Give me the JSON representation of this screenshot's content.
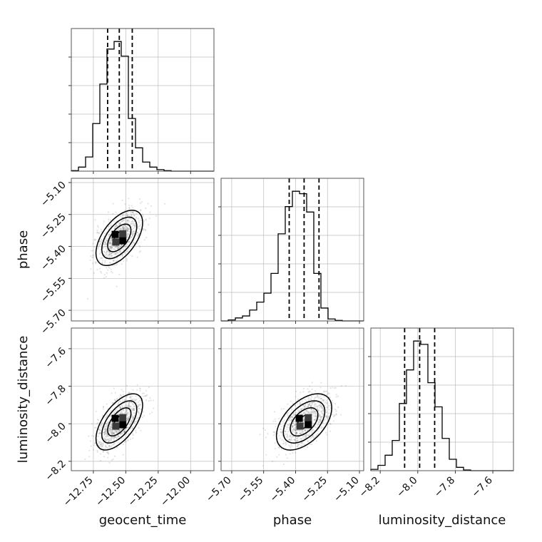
{
  "chart_data": {
    "type": "corner",
    "parameters": [
      "geocent_time",
      "phase",
      "luminosity_distance"
    ],
    "ranges": {
      "geocent_time": [
        -12.92,
        -11.82
      ],
      "phase": [
        -5.75,
        -5.08
      ],
      "luminosity_distance": [
        -8.25,
        -7.49
      ]
    },
    "ticks": {
      "geocent_time": [
        -12.75,
        -12.5,
        -12.25,
        -12.0
      ],
      "phase": [
        -5.7,
        -5.55,
        -5.4,
        -5.25,
        -5.1
      ],
      "luminosity_distance": [
        -8.2,
        -8.0,
        -7.8,
        -7.6
      ]
    },
    "tick_labels": {
      "geocent_time": [
        "−12.75",
        "−12.50",
        "−12.25",
        "−12.00"
      ],
      "phase": [
        "−5.70",
        "−5.55",
        "−5.40",
        "−5.25",
        "−5.10"
      ],
      "luminosity_distance": [
        "−8.2",
        "−8.0",
        "−7.8",
        "−7.6"
      ]
    },
    "axis_labels": {
      "geocent_time": "geocent_time",
      "phase": "phase",
      "luminosity_distance": "luminosity_distance"
    },
    "quantiles": {
      "geocent_time": [
        -12.64,
        -12.55,
        -12.45
      ],
      "phase": [
        -5.43,
        -5.36,
        -5.29
      ],
      "luminosity_distance": [
        -8.07,
        -7.99,
        -7.91
      ]
    },
    "histograms": {
      "geocent_time": {
        "edges": [
          -12.92,
          -12.865,
          -12.81,
          -12.755,
          -12.7,
          -12.645,
          -12.59,
          -12.535,
          -12.48,
          -12.425,
          -12.37,
          -12.315,
          -12.26,
          -12.205,
          -12.15,
          -12.095,
          -12.04,
          -11.985,
          -11.93,
          -11.875,
          -11.82
        ],
        "counts": [
          1,
          8,
          28,
          94,
          172,
          241,
          256,
          227,
          104,
          46,
          18,
          8,
          3,
          1,
          0,
          0,
          0,
          0,
          0,
          0
        ]
      },
      "phase": {
        "edges": [
          -5.75,
          -5.7165,
          -5.683,
          -5.6495,
          -5.616,
          -5.5825,
          -5.549,
          -5.5155,
          -5.482,
          -5.4485,
          -5.415,
          -5.3815,
          -5.348,
          -5.3145,
          -5.281,
          -5.2475,
          -5.214,
          -5.1805,
          -5.147,
          -5.1135,
          -5.08
        ],
        "counts": [
          0,
          2,
          6,
          10,
          22,
          38,
          56,
          96,
          176,
          231,
          262,
          257,
          220,
          96,
          26,
          4,
          1,
          0,
          0,
          0
        ]
      },
      "luminosity_distance": {
        "edges": [
          -8.25,
          -8.212,
          -8.174,
          -8.136,
          -8.098,
          -8.06,
          -8.022,
          -7.984,
          -7.946,
          -7.908,
          -7.87,
          -7.832,
          -7.794,
          -7.756,
          -7.718,
          -7.68,
          -7.642,
          -7.604,
          -7.566,
          -7.528,
          -7.49
        ],
        "counts": [
          2,
          8,
          23,
          45,
          100,
          150,
          193,
          188,
          131,
          95,
          48,
          17,
          5,
          1,
          0,
          0,
          0,
          0,
          0,
          0
        ]
      }
    },
    "posterior": {
      "means": {
        "geocent_time": -12.55,
        "phase": -5.36,
        "luminosity_distance": -7.99
      },
      "stds": {
        "geocent_time": 0.09,
        "phase": 0.065,
        "luminosity_distance": 0.075
      },
      "correlations": {
        "phase|geocent_time": 0.55,
        "luminosity_distance|geocent_time": 0.6,
        "luminosity_distance|phase": 0.5
      }
    },
    "contour_levels_sigma": [
      0.5,
      1.0,
      1.5,
      2.0
    ],
    "grid": true
  }
}
